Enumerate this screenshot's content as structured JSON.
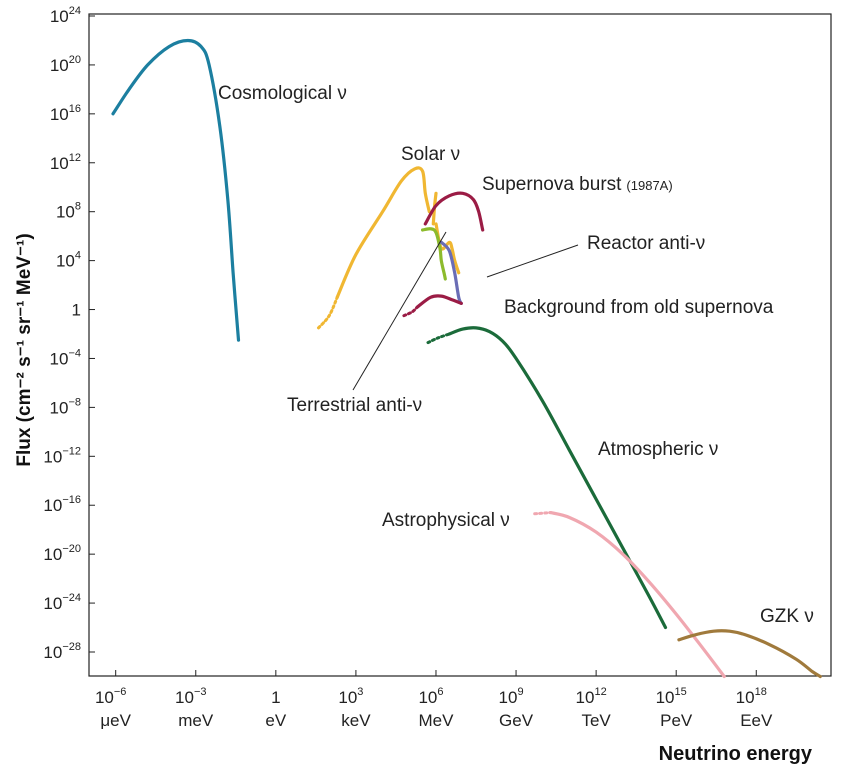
{
  "chart_data": {
    "type": "line",
    "log_x": true,
    "log_y": true,
    "xlim_log10_eV": [
      -7,
      20.8
    ],
    "ylim_log10_flux": [
      -30,
      24
    ],
    "grid": false,
    "y_axis_title": "Flux (cm⁻² s⁻¹ sr⁻¹ MeV⁻¹)",
    "x_axis_title": "Neutrino energy",
    "y_ticks": [
      {
        "value": 24,
        "base": "10",
        "exp": "24"
      },
      {
        "value": 20,
        "base": "10",
        "exp": "20"
      },
      {
        "value": 16,
        "base": "10",
        "exp": "16"
      },
      {
        "value": 12,
        "base": "10",
        "exp": "12"
      },
      {
        "value": 8,
        "base": "10",
        "exp": "8"
      },
      {
        "value": 4,
        "base": "10",
        "exp": "4"
      },
      {
        "value": 0,
        "base": "1",
        "exp": ""
      },
      {
        "value": -4,
        "base": "10",
        "exp": "−4"
      },
      {
        "value": -8,
        "base": "10",
        "exp": "−8"
      },
      {
        "value": -12,
        "base": "10",
        "exp": "−12"
      },
      {
        "value": -16,
        "base": "10",
        "exp": "−16"
      },
      {
        "value": -20,
        "base": "10",
        "exp": "−20"
      },
      {
        "value": -24,
        "base": "10",
        "exp": "−24"
      },
      {
        "value": -28,
        "base": "10",
        "exp": "−28"
      }
    ],
    "x_ticks": [
      {
        "value": -6,
        "base": "10",
        "exp": "−6",
        "unit": "μeV"
      },
      {
        "value": -3,
        "base": "10",
        "exp": "−3",
        "unit": "meV"
      },
      {
        "value": 0,
        "base": "1",
        "exp": "",
        "unit": "eV"
      },
      {
        "value": 3,
        "base": "10",
        "exp": "3",
        "unit": "keV"
      },
      {
        "value": 6,
        "base": "10",
        "exp": "6",
        "unit": "MeV"
      },
      {
        "value": 9,
        "base": "10",
        "exp": "9",
        "unit": "GeV"
      },
      {
        "value": 12,
        "base": "10",
        "exp": "12",
        "unit": "TeV"
      },
      {
        "value": 15,
        "base": "10",
        "exp": "15",
        "unit": "PeV"
      },
      {
        "value": 18,
        "base": "10",
        "exp": "18",
        "unit": "EeV"
      }
    ],
    "series": [
      {
        "name": "Cosmological ν",
        "color": "#1c7fa0",
        "points": [
          [
            -6.1,
            16.0
          ],
          [
            -5.5,
            18.0
          ],
          [
            -4.8,
            20.0
          ],
          [
            -4.0,
            21.5
          ],
          [
            -3.3,
            22.0
          ],
          [
            -2.8,
            21.5
          ],
          [
            -2.5,
            20.0
          ],
          [
            -2.1,
            15.0
          ],
          [
            -1.8,
            9.0
          ],
          [
            -1.6,
            3.0
          ],
          [
            -1.4,
            -2.5
          ]
        ]
      },
      {
        "name": "Solar ν",
        "color": "#f0b732",
        "dotted_points": [
          [
            1.6,
            -1.5
          ],
          [
            2.0,
            -0.5
          ],
          [
            2.3,
            1.0
          ]
        ],
        "points": [
          [
            2.3,
            1.0
          ],
          [
            3.0,
            4.5
          ],
          [
            4.0,
            8.0
          ],
          [
            4.7,
            10.5
          ],
          [
            5.2,
            11.5
          ],
          [
            5.5,
            11.3
          ],
          [
            5.6,
            9.5
          ],
          [
            5.75,
            8.0
          ]
        ],
        "extra_lines": [
          [
            [
              5.9,
              7.0
            ],
            [
              5.95,
              8.5
            ],
            [
              6.0,
              9.5
            ]
          ],
          [
            [
              6.0,
              7.0
            ],
            [
              6.2,
              5.0
            ],
            [
              6.5,
              5.5
            ],
            [
              6.6,
              5.0
            ],
            [
              6.7,
              4.0
            ],
            [
              6.85,
              3.0
            ]
          ]
        ]
      },
      {
        "name": "Supernova burst",
        "color": "#9b1c45",
        "points": [
          [
            5.6,
            7.0
          ],
          [
            6.0,
            8.5
          ],
          [
            6.5,
            9.3
          ],
          [
            7.0,
            9.5
          ],
          [
            7.4,
            9.0
          ],
          [
            7.6,
            8.0
          ],
          [
            7.75,
            6.5
          ]
        ]
      },
      {
        "name": "Terrestrial anti-ν",
        "color": "#8dbb2c",
        "points": [
          [
            5.5,
            6.5
          ],
          [
            5.8,
            6.6
          ],
          [
            6.0,
            6.3
          ],
          [
            6.15,
            5.0
          ],
          [
            6.2,
            4.0
          ],
          [
            6.3,
            3.0
          ],
          [
            6.35,
            2.5
          ]
        ]
      },
      {
        "name": "Reactor anti-ν",
        "color": "#6a6db5",
        "points": [
          [
            6.2,
            5.5
          ],
          [
            6.5,
            4.8
          ],
          [
            6.7,
            3.0
          ],
          [
            6.85,
            1.0
          ],
          [
            6.95,
            0.5
          ]
        ]
      },
      {
        "name": "Background from old supernova",
        "color": "#9b1c45",
        "dotted_points": [
          [
            4.8,
            -0.5
          ],
          [
            5.1,
            -0.2
          ],
          [
            5.3,
            0.2
          ]
        ],
        "points": [
          [
            5.3,
            0.2
          ],
          [
            5.8,
            1.0
          ],
          [
            6.2,
            1.1
          ],
          [
            6.6,
            0.8
          ],
          [
            6.95,
            0.5
          ]
        ]
      },
      {
        "name": "Atmospheric ν",
        "color": "#1b6b3a",
        "dotted_points": [
          [
            5.7,
            -2.7
          ],
          [
            6.1,
            -2.3
          ],
          [
            6.5,
            -2.0
          ]
        ],
        "points": [
          [
            6.5,
            -2.0
          ],
          [
            7.0,
            -1.6
          ],
          [
            7.5,
            -1.5
          ],
          [
            8.0,
            -1.8
          ],
          [
            8.5,
            -2.6
          ],
          [
            9.0,
            -4.0
          ],
          [
            10.0,
            -7.5
          ],
          [
            11.0,
            -11.5
          ],
          [
            12.0,
            -15.5
          ],
          [
            13.0,
            -19.5
          ],
          [
            14.0,
            -23.5
          ],
          [
            14.6,
            -26.0
          ]
        ]
      },
      {
        "name": "Astrophysical ν",
        "color": "#f0a7b0",
        "dotted_points": [
          [
            9.7,
            -16.7
          ],
          [
            10.3,
            -16.6
          ]
        ],
        "points": [
          [
            10.3,
            -16.6
          ],
          [
            11.0,
            -17.0
          ],
          [
            12.0,
            -18.2
          ],
          [
            13.0,
            -20.0
          ],
          [
            14.0,
            -22.3
          ],
          [
            15.0,
            -24.9
          ],
          [
            16.0,
            -27.7
          ],
          [
            16.8,
            -30.0
          ]
        ]
      },
      {
        "name": "GZK ν",
        "color": "#a07a3c",
        "points": [
          [
            15.1,
            -27.0
          ],
          [
            15.7,
            -26.6
          ],
          [
            16.4,
            -26.3
          ],
          [
            17.0,
            -26.3
          ],
          [
            17.6,
            -26.6
          ],
          [
            18.5,
            -27.4
          ],
          [
            19.5,
            -28.6
          ],
          [
            20.1,
            -29.6
          ],
          [
            20.4,
            -30.0
          ]
        ]
      }
    ]
  },
  "labels": {
    "cosmological": "Cosmological ν",
    "solar": "Solar ν",
    "supernova": "Supernova burst",
    "supernova_note": "(1987A)",
    "reactor": "Reactor anti-ν",
    "background": "Background from old supernova",
    "terrestrial": "Terrestrial anti-ν",
    "atmospheric": "Atmospheric ν",
    "astrophysical": "Astrophysical ν",
    "gzk": "GZK ν"
  }
}
